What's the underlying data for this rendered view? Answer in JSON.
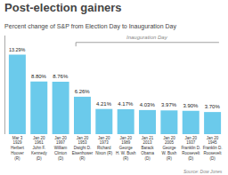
{
  "chart_data": {
    "type": "bar",
    "title": "Post-election gainers",
    "subtitle": "Percent change of S&P from Election Day to Inauguration Day",
    "categories": [
      "Mar 3\n1929\nHerbert\nHoover\n(R)",
      "Jan 20\n1961\nJohn F.\nKennedy\n(D)",
      "Jan 20\n1997\nWilliam\nClinton\n(D)",
      "Jan 20\n1953\nDwight D.\nEisenhower\n(R)",
      "Jan 20\n1973\nRichard\nNixon (R)",
      "Jan 20\n1989\nGeorge\nH. W. Bush\n(R)",
      "Jan 21\n2013\nBarack\nObama\n(D)",
      "Jan 20\n2005\nGeorge\nW. Bush\n(R)",
      "Jan 20\n1937\nFranklin D.\nRoosevelt\n(D)",
      "Jan 20\n1945\nFranklin D.\nRoosevelt\n(D)"
    ],
    "values": [
      13.29,
      8.8,
      8.76,
      6.26,
      4.21,
      4.17,
      4.03,
      3.97,
      3.9,
      3.7
    ],
    "value_labels": [
      "13.29%",
      "8.80%",
      "8.76%",
      "6.26%",
      "4.21%",
      "4.17%",
      "4.03%",
      "3.97%",
      "3.90%",
      "3.70%"
    ],
    "data_labels": true,
    "color": "#6bcaeb",
    "ylim": [
      0,
      16.5
    ],
    "tick_labels": "x",
    "grid": false,
    "annotations": [
      {
        "text": "Inauguration Day",
        "start": "Jan 20\n1953\nDwight D.\nEisenhower\n(R)",
        "end": "Jan 20\n1945\nFranklin D.\nRoosevelt\n(D)"
      }
    ],
    "source": "Source: Dow Jones"
  }
}
